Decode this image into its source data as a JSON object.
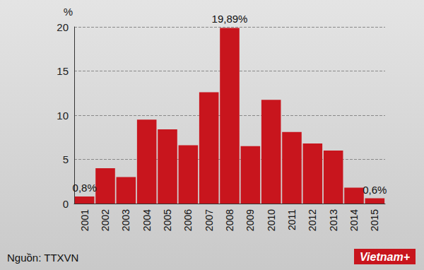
{
  "chart_data": {
    "type": "bar",
    "y_label": "%",
    "categories": [
      "2001",
      "2002",
      "2003",
      "2004",
      "2005",
      "2006",
      "2007",
      "2008",
      "2009",
      "2010",
      "2011",
      "2012",
      "2013",
      "2014",
      "2015"
    ],
    "values": [
      0.8,
      4.0,
      3.0,
      9.5,
      8.4,
      6.6,
      12.6,
      19.89,
      6.5,
      11.75,
      8.1,
      6.8,
      6.0,
      1.8,
      0.6
    ],
    "value_labels": [
      "0,8%",
      null,
      null,
      null,
      null,
      null,
      null,
      "19,89%",
      null,
      null,
      null,
      null,
      null,
      null,
      "0,6%"
    ],
    "data_labels": true,
    "color": "#c8151d",
    "ylim": [
      0,
      20
    ],
    "yticks": [
      0,
      5,
      10,
      15,
      20
    ],
    "grid": true,
    "source": "Nguồn: TTXVN",
    "logo": "Vietnam+"
  }
}
